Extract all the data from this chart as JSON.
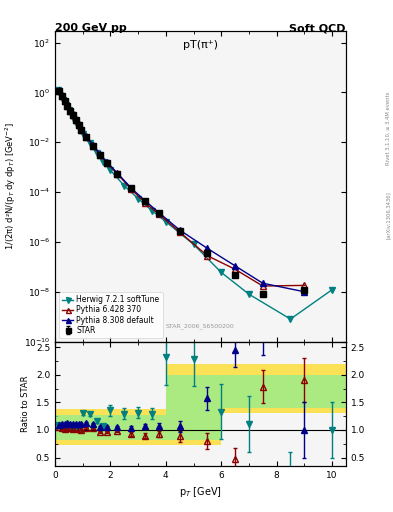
{
  "title_left": "200 GeV pp",
  "title_right": "Soft QCD",
  "plot_title": "pT(π⁺)",
  "watermark": "STAR_2006_S6500200",
  "right_label": "Rivet 3.1.10, ≥ 3.4M events",
  "arxiv_label": "[arXiv:1306.3436]",
  "xlabel": "p$_T$ [GeV]",
  "ylabel_main": "1/(2π) d²N/(p$_T$ dy dp$_T$) [GeV$^{-2}$]",
  "ylabel_ratio": "Ratio to STAR",
  "xlim": [
    0,
    10.5
  ],
  "ylim_main": [
    1e-10,
    300
  ],
  "ylim_ratio": [
    0.35,
    2.6
  ],
  "star_x": [
    0.15,
    0.25,
    0.35,
    0.45,
    0.55,
    0.65,
    0.75,
    0.85,
    0.95,
    1.125,
    1.375,
    1.625,
    1.875,
    2.25,
    2.75,
    3.25,
    3.75,
    4.5,
    5.5,
    6.5,
    7.5,
    9.0
  ],
  "star_y": [
    1.1,
    0.7,
    0.45,
    0.28,
    0.18,
    0.12,
    0.075,
    0.048,
    0.031,
    0.016,
    0.007,
    0.0032,
    0.0015,
    0.00055,
    0.00014,
    4.2e-05,
    1.4e-05,
    2.8e-06,
    3.5e-07,
    4.5e-08,
    8e-09,
    1.2e-08
  ],
  "star_yerr": [
    0.05,
    0.03,
    0.02,
    0.012,
    0.008,
    0.005,
    0.003,
    0.002,
    0.0012,
    0.0006,
    0.00025,
    0.0001,
    5e-05,
    1.5e-05,
    4e-06,
    1.2e-06,
    4e-07,
    8e-08,
    1.2e-08,
    2e-09,
    5e-10,
    2e-09
  ],
  "star_color": "#000000",
  "star_marker": "s",
  "star_markersize": 4,
  "star_label": "STAR",
  "herwig_x": [
    0.1,
    0.2,
    0.3,
    0.4,
    0.5,
    0.6,
    0.7,
    0.8,
    0.9,
    1.0,
    1.25,
    1.5,
    1.75,
    2.0,
    2.5,
    3.0,
    3.5,
    4.0,
    5.0,
    6.0,
    7.0,
    8.5,
    10.0
  ],
  "herwig_y": [
    1.2,
    0.75,
    0.48,
    0.3,
    0.19,
    0.125,
    0.078,
    0.05,
    0.032,
    0.021,
    0.009,
    0.0037,
    0.0016,
    0.00075,
    0.00018,
    5.5e-05,
    1.8e-05,
    6.5e-06,
    8e-07,
    6e-08,
    8e-09,
    8e-10,
    1.2e-08
  ],
  "herwig_color": "#008080",
  "herwig_marker": "v",
  "herwig_markersize": 4,
  "herwig_label": "Herwig 7.2.1 softTune",
  "pythia6_x": [
    0.15,
    0.25,
    0.35,
    0.45,
    0.55,
    0.65,
    0.75,
    0.85,
    0.95,
    1.125,
    1.375,
    1.625,
    1.875,
    2.25,
    2.75,
    3.25,
    3.75,
    4.5,
    5.5,
    6.5,
    7.5,
    9.0
  ],
  "pythia6_y": [
    1.15,
    0.72,
    0.46,
    0.29,
    0.185,
    0.122,
    0.077,
    0.049,
    0.031,
    0.0165,
    0.0072,
    0.0031,
    0.00145,
    0.00054,
    0.00013,
    3.8e-05,
    1.3e-05,
    2.5e-06,
    2.8e-07,
    8e-08,
    1.7e-08,
    1.8e-08
  ],
  "pythia6_color": "#8B0000",
  "pythia6_marker": "^",
  "pythia6_markersize": 4,
  "pythia6_label": "Pythia 6.428 370",
  "pythia8_x": [
    0.15,
    0.25,
    0.35,
    0.45,
    0.55,
    0.65,
    0.75,
    0.85,
    0.95,
    1.125,
    1.375,
    1.625,
    1.875,
    2.25,
    2.75,
    3.25,
    3.75,
    4.5,
    5.5,
    6.5,
    7.5,
    9.0
  ],
  "pythia8_y": [
    1.2,
    0.78,
    0.5,
    0.315,
    0.2,
    0.132,
    0.083,
    0.053,
    0.034,
    0.018,
    0.0078,
    0.0034,
    0.00158,
    0.00058,
    0.000145,
    4.5e-05,
    1.5e-05,
    3e-06,
    5.5e-07,
    1.1e-07,
    2.2e-08,
    1e-08
  ],
  "pythia8_color": "#00008B",
  "pythia8_marker": "^",
  "pythia8_markersize": 4,
  "pythia8_label": "Pythia 8.308 default",
  "ratio_herwig_x": [
    0.1,
    0.2,
    0.3,
    0.4,
    0.5,
    0.6,
    0.7,
    0.8,
    0.9,
    1.0,
    1.25,
    1.5,
    1.75,
    2.0,
    2.5,
    3.0,
    3.5,
    4.0,
    5.0,
    6.0,
    7.0,
    8.5,
    10.0
  ],
  "ratio_herwig_y": [
    1.09,
    1.07,
    1.07,
    1.07,
    1.06,
    1.04,
    1.04,
    1.04,
    1.03,
    1.31,
    1.29,
    1.16,
    1.07,
    1.36,
    1.29,
    1.31,
    1.29,
    2.32,
    2.29,
    1.33,
    1.11,
    0.1,
    1.0
  ],
  "ratio_herwig_yerr": [
    0.02,
    0.02,
    0.02,
    0.02,
    0.02,
    0.02,
    0.02,
    0.02,
    0.02,
    0.03,
    0.03,
    0.03,
    0.03,
    0.1,
    0.1,
    0.1,
    0.1,
    0.5,
    0.5,
    0.5,
    0.5,
    0.5,
    0.5
  ],
  "ratio_pythia6_x": [
    0.15,
    0.25,
    0.35,
    0.45,
    0.55,
    0.65,
    0.75,
    0.85,
    0.95,
    1.125,
    1.375,
    1.625,
    1.875,
    2.25,
    2.75,
    3.25,
    3.75,
    4.5,
    5.5,
    6.5,
    7.5,
    9.0
  ],
  "ratio_pythia6_y": [
    1.05,
    1.03,
    1.02,
    1.04,
    1.03,
    1.02,
    1.03,
    1.02,
    1.0,
    1.03,
    1.03,
    0.97,
    0.97,
    0.98,
    0.93,
    0.9,
    0.93,
    0.89,
    0.8,
    0.48,
    1.78,
    1.9
  ],
  "ratio_pythia6_yerr": [
    0.02,
    0.02,
    0.02,
    0.02,
    0.02,
    0.02,
    0.02,
    0.02,
    0.02,
    0.02,
    0.02,
    0.02,
    0.02,
    0.02,
    0.03,
    0.04,
    0.05,
    0.1,
    0.15,
    0.2,
    0.3,
    0.4
  ],
  "ratio_pythia8_x": [
    0.15,
    0.25,
    0.35,
    0.45,
    0.55,
    0.65,
    0.75,
    0.85,
    0.95,
    1.125,
    1.375,
    1.625,
    1.875,
    2.25,
    2.75,
    3.25,
    3.75,
    4.5,
    5.5,
    6.5,
    7.5,
    9.0
  ],
  "ratio_pythia8_y": [
    1.09,
    1.11,
    1.11,
    1.13,
    1.11,
    1.1,
    1.11,
    1.1,
    1.1,
    1.13,
    1.11,
    1.06,
    1.05,
    1.05,
    1.04,
    1.07,
    1.07,
    1.07,
    1.57,
    2.44,
    2.75,
    1.0
  ],
  "ratio_pythia8_yerr": [
    0.02,
    0.02,
    0.02,
    0.02,
    0.02,
    0.02,
    0.02,
    0.02,
    0.02,
    0.02,
    0.02,
    0.02,
    0.02,
    0.02,
    0.03,
    0.04,
    0.05,
    0.1,
    0.2,
    0.3,
    0.4,
    0.5
  ],
  "band_yellow_x": [
    0.0,
    1.5,
    1.5,
    4.0,
    4.0,
    6.0,
    6.0,
    8.0,
    8.0,
    10.5
  ],
  "band_yellow_lo": [
    0.72,
    0.72,
    0.72,
    0.72,
    0.72,
    0.72,
    0.72,
    1.3,
    1.3,
    1.3
  ],
  "band_yellow_hi": [
    1.38,
    1.38,
    1.38,
    1.38,
    1.38,
    2.2,
    2.2,
    2.2,
    2.2,
    2.2
  ],
  "band_green_x": [
    0.0,
    1.5,
    1.5,
    4.0,
    4.0,
    6.0,
    6.0,
    8.0,
    8.0,
    10.5
  ],
  "band_green_lo": [
    0.82,
    0.82,
    0.82,
    0.82,
    0.82,
    0.82,
    0.82,
    1.4,
    1.4,
    1.4
  ],
  "band_green_hi": [
    1.28,
    1.28,
    1.28,
    1.28,
    1.28,
    2.0,
    2.0,
    2.0,
    2.0,
    2.0
  ],
  "bg_color": "#f5f5f5",
  "yellow_color": "#FFD700",
  "green_color": "#90EE90"
}
